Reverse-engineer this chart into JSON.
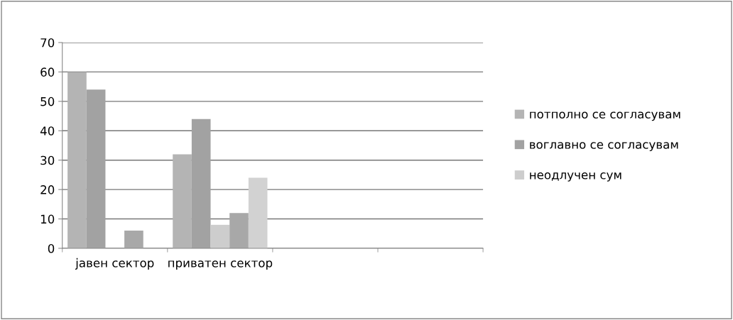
{
  "chart_data": {
    "type": "bar",
    "categories": [
      "јавен сектор",
      "приватен сектор",
      null,
      null
    ],
    "series": [
      {
        "name": "потполно се согласувам",
        "color": "#b4b4b4",
        "values": [
          60,
          32,
          null,
          null
        ]
      },
      {
        "name": "воглавно се согласувам",
        "color": "#a2a2a2",
        "values": [
          54,
          44,
          null,
          null
        ]
      },
      {
        "name": "неодлучен сум",
        "color": "#cdcdcd",
        "values": [
          null,
          8,
          null,
          null
        ]
      },
      {
        "color": "#a8a8a8",
        "values": [
          6,
          12,
          null,
          null
        ]
      },
      {
        "color": "#d2d2d2",
        "values": [
          null,
          24,
          null,
          null
        ]
      }
    ],
    "ylim": [
      0,
      70
    ],
    "yticks": [
      0,
      10,
      20,
      30,
      40,
      50,
      60,
      70
    ],
    "grid": "y",
    "legend": "right"
  }
}
